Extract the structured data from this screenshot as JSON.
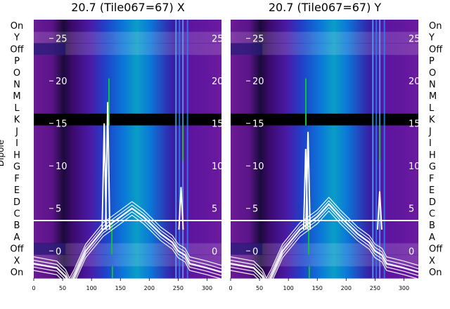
{
  "chart_data": [
    {
      "type": "heatmap",
      "title": "20.7 (Tile067=67) X",
      "ylabel": "Dipole",
      "rows": [
        "On",
        "Y",
        "Off",
        "P",
        "O",
        "N",
        "M",
        "L",
        "K",
        "J",
        "I",
        "H",
        "G",
        "F",
        "E",
        "D",
        "C",
        "B",
        "A",
        "Off",
        "X",
        "On"
      ],
      "x_ticks": [
        0,
        50,
        100,
        150,
        200,
        250,
        300
      ],
      "xlim": [
        0,
        325
      ],
      "overlay_ticks": [
        0,
        5,
        10,
        15,
        20,
        25
      ],
      "overlay_ylim": [
        -3.2,
        27.2
      ],
      "flagged_row": "K",
      "band_edges": [
        55,
        132,
        245,
        265
      ],
      "spikes": [
        [
          122,
          15
        ],
        [
          128,
          17.5
        ],
        [
          255,
          7.5
        ]
      ],
      "series": [
        {
          "values": [
            [
              0,
              -1.5
            ],
            [
              40,
              -2
            ],
            [
              55,
              -3
            ],
            [
              62,
              -4
            ],
            [
              70,
              -3
            ],
            [
              90,
              0
            ],
            [
              120,
              2.5
            ],
            [
              150,
              4
            ],
            [
              170,
              5
            ],
            [
              190,
              4
            ],
            [
              220,
              2
            ],
            [
              240,
              1
            ],
            [
              250,
              0
            ],
            [
              262,
              -0.5
            ],
            [
              270,
              -1.5
            ],
            [
              300,
              -2
            ],
            [
              325,
              -2.5
            ]
          ]
        }
      ]
    },
    {
      "type": "heatmap",
      "title": "20.7 (Tile067=67) Y",
      "ylabel": "",
      "rows": [
        "On",
        "Y",
        "Off",
        "P",
        "O",
        "N",
        "M",
        "L",
        "K",
        "J",
        "I",
        "H",
        "G",
        "F",
        "E",
        "D",
        "C",
        "B",
        "A",
        "Off",
        "X",
        "On"
      ],
      "x_ticks": [
        0,
        50,
        100,
        150,
        200,
        250,
        300
      ],
      "xlim": [
        0,
        325
      ],
      "overlay_ticks": [
        0,
        5,
        10,
        15,
        20,
        25
      ],
      "overlay_ylim": [
        -3.2,
        27.2
      ],
      "flagged_row": "K",
      "band_edges": [
        55,
        132,
        245,
        265
      ],
      "spikes": [
        [
          130,
          12
        ],
        [
          134,
          14
        ],
        [
          258,
          7
        ]
      ],
      "series": [
        {
          "values": [
            [
              0,
              -1.5
            ],
            [
              40,
              -2
            ],
            [
              55,
              -3
            ],
            [
              62,
              -4
            ],
            [
              70,
              -3
            ],
            [
              90,
              0
            ],
            [
              120,
              2.5
            ],
            [
              150,
              4
            ],
            [
              170,
              5.5
            ],
            [
              190,
              4
            ],
            [
              220,
              2
            ],
            [
              240,
              1
            ],
            [
              250,
              0
            ],
            [
              262,
              -0.5
            ],
            [
              270,
              -1.5
            ],
            [
              300,
              -2
            ],
            [
              325,
              -2.5
            ]
          ]
        }
      ]
    }
  ]
}
